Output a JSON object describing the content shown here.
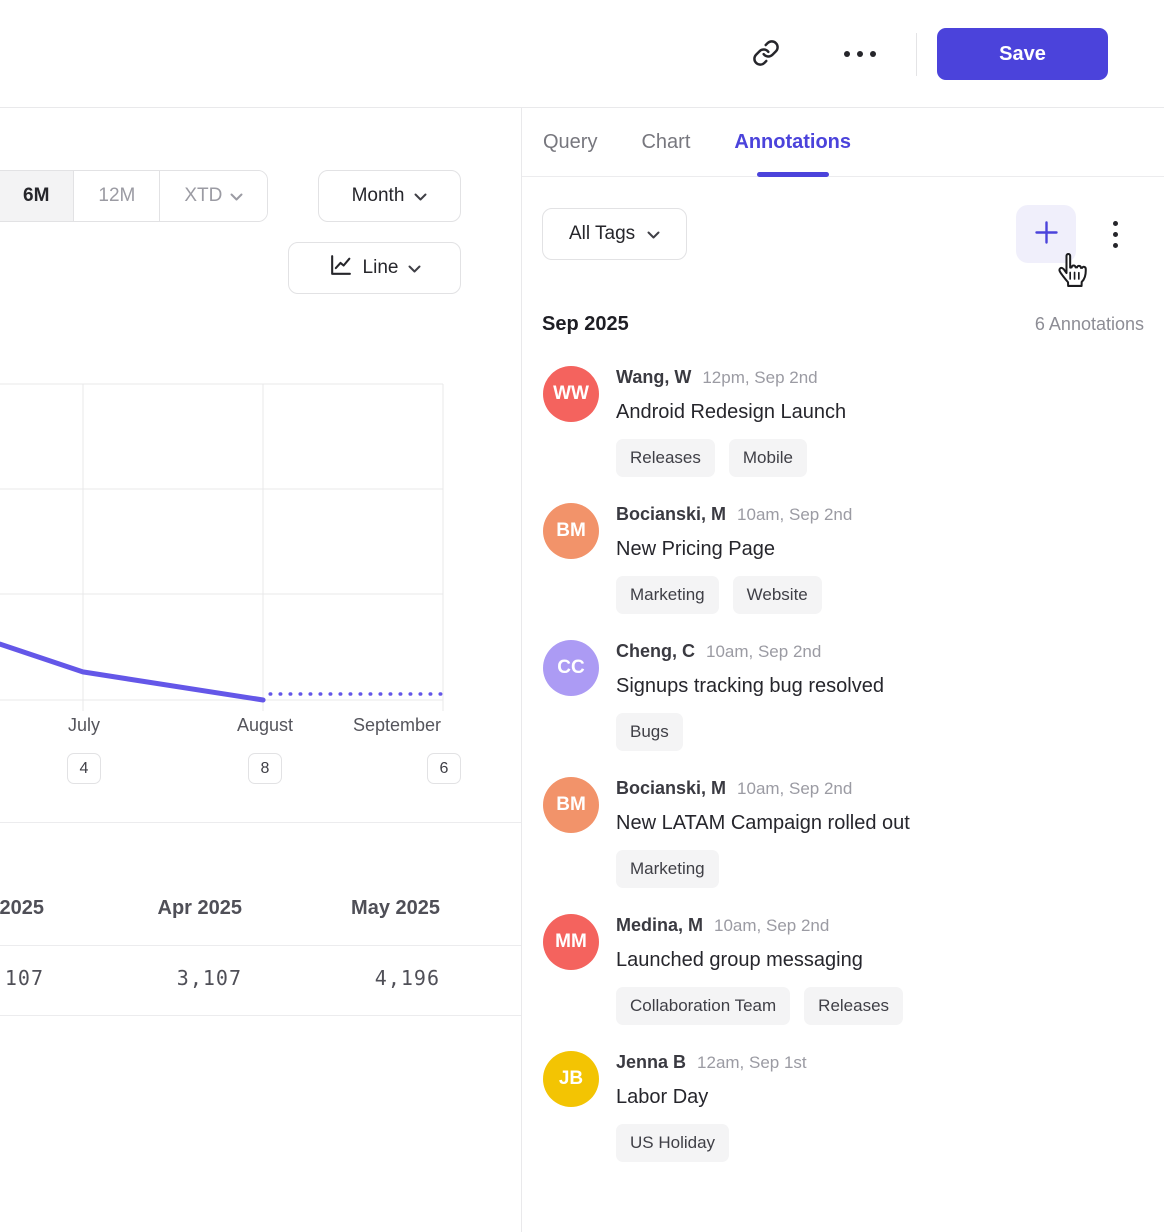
{
  "topbar": {
    "save": "Save"
  },
  "left_panel": {
    "ranges": {
      "r6m": "6M",
      "r12m": "12M",
      "rxtd": "XTD"
    },
    "granularity": "Month",
    "chart_type": "Line",
    "table": {
      "headers": {
        "c0": "2025",
        "c1": "Apr 2025",
        "c2": "May 2025"
      },
      "values": {
        "c0": "107",
        "c1": "3,107",
        "c2": "4,196"
      }
    }
  },
  "chart_data": {
    "type": "line",
    "title": "",
    "x_tick_labels": [
      "July",
      "August",
      "September"
    ],
    "x_tick_annotation_counts": [
      "4",
      "8",
      "6"
    ],
    "y_axis_visible": false,
    "line_color": "#6457E8",
    "series": [
      {
        "name": "actual",
        "style": "solid",
        "points_frac": [
          [
            0,
            0.177
          ],
          [
            0.187,
            0.089
          ],
          [
            0.594,
            0
          ]
        ]
      },
      {
        "name": "projection",
        "style": "dotted",
        "points_frac": [
          [
            0.61,
            0.019
          ],
          [
            1,
            0.019
          ]
        ]
      }
    ]
  },
  "right_panel": {
    "tabs": {
      "query": "Query",
      "chart": "Chart",
      "annotations": "Annotations"
    },
    "filter": "All Tags",
    "group": "Sep 2025",
    "count": "6 Annotations",
    "items": [
      {
        "initials": "WW",
        "color": "#F4635E",
        "name": "Wang, W",
        "time": "12pm, Sep 2nd",
        "title": "Android Redesign Launch",
        "tags": [
          "Releases",
          "Mobile"
        ]
      },
      {
        "initials": "BM",
        "color": "#F2936A",
        "name": "Bocianski, M",
        "time": "10am, Sep 2nd",
        "title": "New Pricing Page",
        "tags": [
          "Marketing",
          "Website"
        ]
      },
      {
        "initials": "CC",
        "color": "#AC9BF4",
        "name": "Cheng, C",
        "time": "10am, Sep 2nd",
        "title": "Signups tracking bug resolved",
        "tags": [
          "Bugs"
        ]
      },
      {
        "initials": "BM",
        "color": "#F2936A",
        "name": "Bocianski, M",
        "time": "10am, Sep 2nd",
        "title": "New LATAM Campaign rolled out",
        "tags": [
          "Marketing"
        ]
      },
      {
        "initials": "MM",
        "color": "#F4635E",
        "name": "Medina, M",
        "time": "10am, Sep 2nd",
        "title": "Launched group messaging",
        "tags": [
          "Collaboration Team",
          "Releases"
        ]
      },
      {
        "initials": "JB",
        "color": "#F3C403",
        "name": "Jenna B",
        "time": "12am, Sep 1st",
        "title": "Labor Day",
        "tags": [
          "US Holiday"
        ]
      }
    ]
  },
  "colors": {
    "accent": "#4B43DB",
    "line": "#6457E8",
    "plus_bg": "#F0EFFB",
    "pill_bg": "#F4F4F5"
  }
}
